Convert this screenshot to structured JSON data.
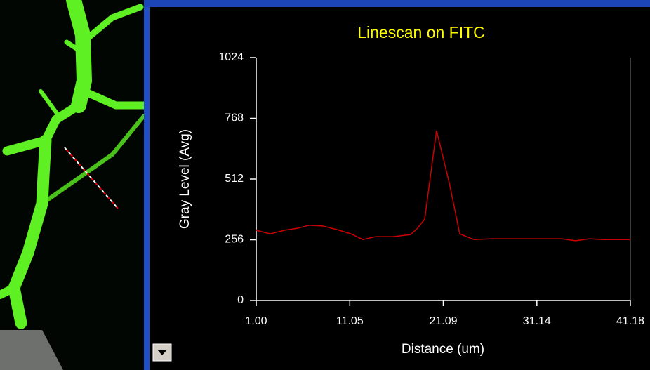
{
  "chart_data": {
    "type": "line",
    "title": "Linescan on FITC",
    "x_label": "Distance (um)",
    "y_label": "Gray Level (Avg)",
    "x": [
      1.0,
      2.51,
      4.02,
      5.52,
      6.65,
      8.16,
      9.67,
      11.18,
      12.46,
      13.81,
      15.7,
      17.58,
      18.34,
      19.09,
      20.37,
      21.73,
      22.86,
      24.37,
      26.25,
      30.78,
      33.79,
      35.3,
      36.81,
      38.31,
      41.18
    ],
    "values": [
      296,
      281,
      296,
      305,
      317,
      314,
      299,
      281,
      257,
      269,
      269,
      278,
      305,
      343,
      716,
      497,
      281,
      257,
      260,
      260,
      260,
      252,
      260,
      257,
      257
    ],
    "color": "#cc0000",
    "xlim": [
      1.0,
      41.18
    ],
    "xticks": [
      {
        "value": 1,
        "label": "1.00"
      },
      11.05,
      21.09,
      31.14,
      41.18
    ],
    "ylim": [
      0,
      1024
    ],
    "yticks": [
      0,
      256,
      512,
      768,
      1024
    ]
  }
}
